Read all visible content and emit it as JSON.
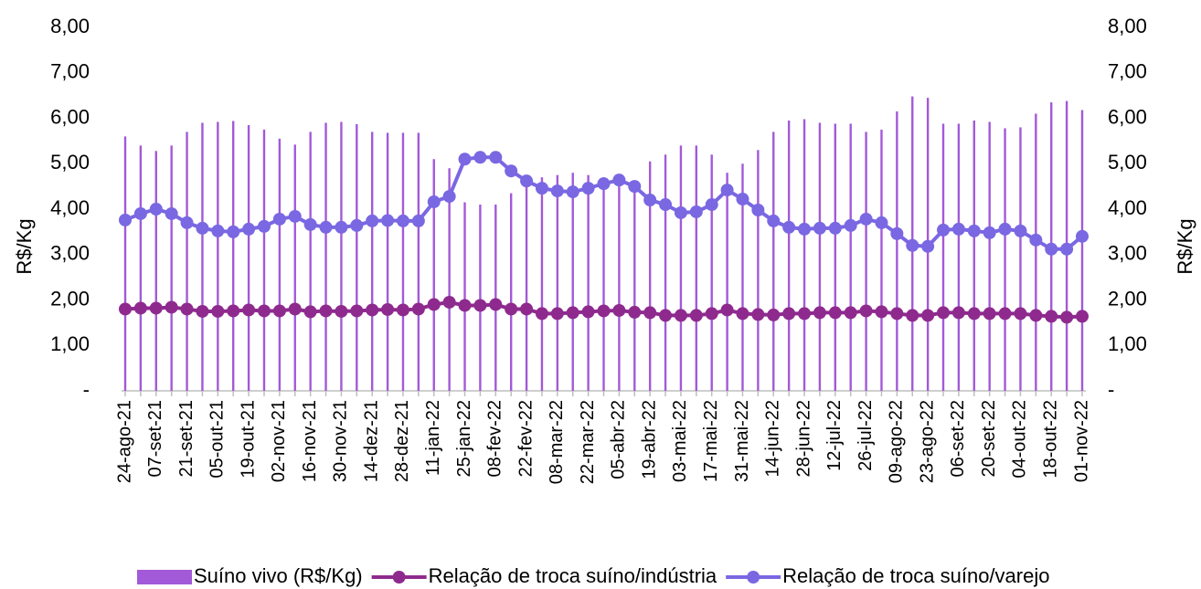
{
  "chart_data": {
    "type": "bar-line",
    "ylabel": "R$/Kg",
    "y2label": "R$/Kg",
    "categories": [
      "24-ago-21",
      null,
      "07-set-21",
      null,
      "21-set-21",
      null,
      "05-out-21",
      null,
      "19-out-21",
      null,
      "02-nov-21",
      null,
      "16-nov-21",
      null,
      "30-nov-21",
      null,
      "14-dez-21",
      null,
      "28-dez-21",
      null,
      "11-jan-22",
      null,
      "25-jan-22",
      null,
      "08-fev-22",
      null,
      "22-fev-22",
      null,
      "08-mar-22",
      null,
      "22-mar-22",
      null,
      "05-abr-22",
      null,
      "19-abr-22",
      null,
      "03-mai-22",
      null,
      "17-mai-22",
      null,
      "31-mai-22",
      null,
      "14-jun-22",
      null,
      "28-jun-22",
      null,
      "12-jul-22",
      null,
      "26-jul-22",
      null,
      "09-ago-22",
      null,
      "23-ago-22",
      null,
      "06-set-22",
      null,
      "20-set-22",
      null,
      "04-out-22",
      null,
      "18-out-22",
      null,
      "01-nov-22"
    ],
    "series": [
      {
        "name": "Suíno vivo (R$/Kg)",
        "kind": "bar",
        "color": "#a25ad8",
        "values": [
          5.6,
          5.4,
          5.28,
          5.4,
          5.7,
          5.9,
          5.92,
          5.94,
          5.85,
          5.75,
          5.55,
          5.42,
          5.7,
          5.9,
          5.92,
          5.87,
          5.7,
          5.68,
          5.68,
          5.68,
          5.1,
          4.9,
          4.15,
          4.1,
          4.1,
          4.35,
          4.5,
          4.7,
          4.75,
          4.8,
          4.75,
          4.7,
          4.75,
          4.6,
          5.05,
          5.2,
          5.4,
          5.4,
          5.2,
          4.8,
          5.0,
          5.3,
          5.7,
          5.95,
          5.98,
          5.9,
          5.88,
          5.88,
          5.7,
          5.75,
          6.15,
          6.48,
          6.45,
          5.88,
          5.88,
          5.95,
          5.92,
          5.78,
          5.8,
          6.1,
          6.35,
          6.38,
          6.18
        ]
      },
      {
        "name": "Relação de troca suíno/indústria",
        "kind": "line",
        "color": "#8e2a8e",
        "values": [
          1.8,
          1.82,
          1.82,
          1.84,
          1.8,
          1.75,
          1.75,
          1.76,
          1.78,
          1.76,
          1.76,
          1.8,
          1.74,
          1.76,
          1.75,
          1.76,
          1.78,
          1.79,
          1.78,
          1.8,
          1.9,
          1.95,
          1.88,
          1.88,
          1.9,
          1.8,
          1.8,
          1.7,
          1.7,
          1.72,
          1.74,
          1.76,
          1.77,
          1.73,
          1.72,
          1.66,
          1.66,
          1.66,
          1.7,
          1.78,
          1.7,
          1.68,
          1.67,
          1.7,
          1.7,
          1.72,
          1.72,
          1.72,
          1.76,
          1.74,
          1.7,
          1.66,
          1.66,
          1.72,
          1.72,
          1.7,
          1.7,
          1.7,
          1.7,
          1.66,
          1.64,
          1.62,
          1.64
        ]
      },
      {
        "name": "Relação de troca suíno/varejo",
        "kind": "line",
        "color": "#7a67e2",
        "values": [
          3.76,
          3.9,
          4.0,
          3.9,
          3.7,
          3.58,
          3.52,
          3.5,
          3.56,
          3.62,
          3.78,
          3.84,
          3.66,
          3.6,
          3.6,
          3.64,
          3.74,
          3.75,
          3.74,
          3.74,
          4.16,
          4.28,
          5.1,
          5.14,
          5.14,
          4.84,
          4.62,
          4.46,
          4.4,
          4.38,
          4.46,
          4.56,
          4.64,
          4.5,
          4.2,
          4.1,
          3.92,
          3.94,
          4.1,
          4.42,
          4.22,
          3.98,
          3.74,
          3.6,
          3.56,
          3.58,
          3.58,
          3.64,
          3.78,
          3.7,
          3.46,
          3.2,
          3.18,
          3.54,
          3.56,
          3.52,
          3.48,
          3.56,
          3.52,
          3.32,
          3.12,
          3.12,
          3.4
        ]
      }
    ],
    "ylim": [
      0,
      8
    ],
    "yticks": [
      {
        "value": 0,
        "label": "-"
      },
      {
        "value": 1,
        "label": "1,00"
      },
      {
        "value": 2,
        "label": "2,00"
      },
      {
        "value": 3,
        "label": "3,00"
      },
      {
        "value": 4,
        "label": "4,00"
      },
      {
        "value": 5,
        "label": "5,00"
      },
      {
        "value": 6,
        "label": "6,00"
      },
      {
        "value": 7,
        "label": "7,00"
      },
      {
        "value": 8,
        "label": "8,00"
      }
    ],
    "y2lim": [
      0,
      8
    ],
    "y2ticks": [
      {
        "value": 0,
        "label": "-"
      },
      {
        "value": 1,
        "label": "1,00"
      },
      {
        "value": 2,
        "label": "2,00"
      },
      {
        "value": 3,
        "label": "3,00"
      },
      {
        "value": 4,
        "label": "4,00"
      },
      {
        "value": 5,
        "label": "5,00"
      },
      {
        "value": 6,
        "label": "6,00"
      },
      {
        "value": 7,
        "label": "7,00"
      },
      {
        "value": 8,
        "label": "8,00"
      }
    ],
    "legend": "bottom"
  }
}
